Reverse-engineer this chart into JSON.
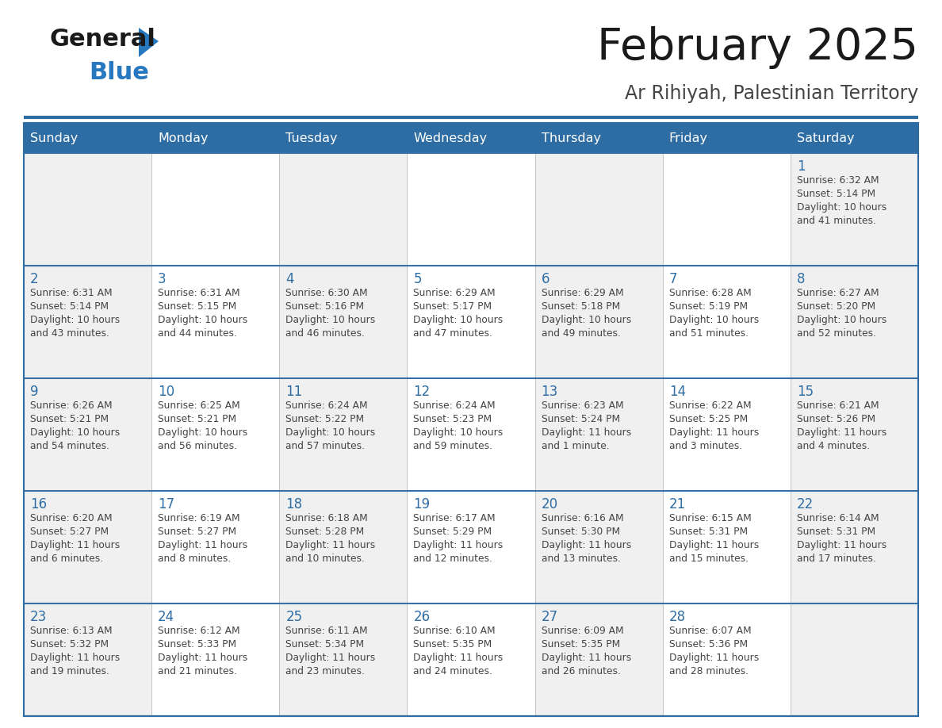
{
  "title": "February 2025",
  "subtitle": "Ar Rihiyah, Palestinian Territory",
  "header_bg": "#2E6DA4",
  "header_text_color": "#FFFFFF",
  "border_color": "#2E6DA4",
  "row_divider_color": "#3A6FA8",
  "cell_bg_white": "#FFFFFF",
  "cell_bg_gray": "#F0F0F0",
  "title_color": "#1a1a1a",
  "subtitle_color": "#444444",
  "day_num_color": "#2E6DA4",
  "cell_text_color": "#444444",
  "logo_general_color": "#1a1a1a",
  "logo_blue_color": "#2878C0",
  "days_of_week": [
    "Sunday",
    "Monday",
    "Tuesday",
    "Wednesday",
    "Thursday",
    "Friday",
    "Saturday"
  ],
  "calendar": [
    [
      null,
      null,
      null,
      null,
      null,
      null,
      {
        "day": 1,
        "sunrise": "6:32 AM",
        "sunset": "5:14 PM",
        "daylight": "10 hours and 41 minutes."
      }
    ],
    [
      {
        "day": 2,
        "sunrise": "6:31 AM",
        "sunset": "5:14 PM",
        "daylight": "10 hours and 43 minutes."
      },
      {
        "day": 3,
        "sunrise": "6:31 AM",
        "sunset": "5:15 PM",
        "daylight": "10 hours and 44 minutes."
      },
      {
        "day": 4,
        "sunrise": "6:30 AM",
        "sunset": "5:16 PM",
        "daylight": "10 hours and 46 minutes."
      },
      {
        "day": 5,
        "sunrise": "6:29 AM",
        "sunset": "5:17 PM",
        "daylight": "10 hours and 47 minutes."
      },
      {
        "day": 6,
        "sunrise": "6:29 AM",
        "sunset": "5:18 PM",
        "daylight": "10 hours and 49 minutes."
      },
      {
        "day": 7,
        "sunrise": "6:28 AM",
        "sunset": "5:19 PM",
        "daylight": "10 hours and 51 minutes."
      },
      {
        "day": 8,
        "sunrise": "6:27 AM",
        "sunset": "5:20 PM",
        "daylight": "10 hours and 52 minutes."
      }
    ],
    [
      {
        "day": 9,
        "sunrise": "6:26 AM",
        "sunset": "5:21 PM",
        "daylight": "10 hours and 54 minutes."
      },
      {
        "day": 10,
        "sunrise": "6:25 AM",
        "sunset": "5:21 PM",
        "daylight": "10 hours and 56 minutes."
      },
      {
        "day": 11,
        "sunrise": "6:24 AM",
        "sunset": "5:22 PM",
        "daylight": "10 hours and 57 minutes."
      },
      {
        "day": 12,
        "sunrise": "6:24 AM",
        "sunset": "5:23 PM",
        "daylight": "10 hours and 59 minutes."
      },
      {
        "day": 13,
        "sunrise": "6:23 AM",
        "sunset": "5:24 PM",
        "daylight": "11 hours and 1 minute."
      },
      {
        "day": 14,
        "sunrise": "6:22 AM",
        "sunset": "5:25 PM",
        "daylight": "11 hours and 3 minutes."
      },
      {
        "day": 15,
        "sunrise": "6:21 AM",
        "sunset": "5:26 PM",
        "daylight": "11 hours and 4 minutes."
      }
    ],
    [
      {
        "day": 16,
        "sunrise": "6:20 AM",
        "sunset": "5:27 PM",
        "daylight": "11 hours and 6 minutes."
      },
      {
        "day": 17,
        "sunrise": "6:19 AM",
        "sunset": "5:27 PM",
        "daylight": "11 hours and 8 minutes."
      },
      {
        "day": 18,
        "sunrise": "6:18 AM",
        "sunset": "5:28 PM",
        "daylight": "11 hours and 10 minutes."
      },
      {
        "day": 19,
        "sunrise": "6:17 AM",
        "sunset": "5:29 PM",
        "daylight": "11 hours and 12 minutes."
      },
      {
        "day": 20,
        "sunrise": "6:16 AM",
        "sunset": "5:30 PM",
        "daylight": "11 hours and 13 minutes."
      },
      {
        "day": 21,
        "sunrise": "6:15 AM",
        "sunset": "5:31 PM",
        "daylight": "11 hours and 15 minutes."
      },
      {
        "day": 22,
        "sunrise": "6:14 AM",
        "sunset": "5:31 PM",
        "daylight": "11 hours and 17 minutes."
      }
    ],
    [
      {
        "day": 23,
        "sunrise": "6:13 AM",
        "sunset": "5:32 PM",
        "daylight": "11 hours and 19 minutes."
      },
      {
        "day": 24,
        "sunrise": "6:12 AM",
        "sunset": "5:33 PM",
        "daylight": "11 hours and 21 minutes."
      },
      {
        "day": 25,
        "sunrise": "6:11 AM",
        "sunset": "5:34 PM",
        "daylight": "11 hours and 23 minutes."
      },
      {
        "day": 26,
        "sunrise": "6:10 AM",
        "sunset": "5:35 PM",
        "daylight": "11 hours and 24 minutes."
      },
      {
        "day": 27,
        "sunrise": "6:09 AM",
        "sunset": "5:35 PM",
        "daylight": "11 hours and 26 minutes."
      },
      {
        "day": 28,
        "sunrise": "6:07 AM",
        "sunset": "5:36 PM",
        "daylight": "11 hours and 28 minutes."
      },
      null
    ]
  ]
}
